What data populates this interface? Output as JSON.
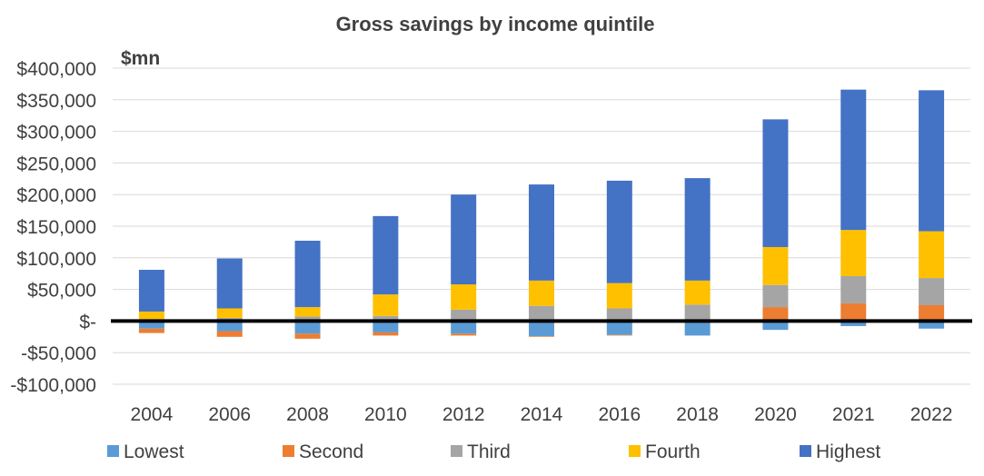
{
  "chart_data": {
    "type": "bar",
    "stacked": true,
    "title": "Gross savings by income quintile",
    "unit_label": "$mn",
    "xlabel": "",
    "ylabel": "",
    "categories": [
      "2004",
      "2006",
      "2008",
      "2010",
      "2012",
      "2014",
      "2016",
      "2018",
      "2020",
      "2021",
      "2022"
    ],
    "ylim": [
      -100000,
      400000
    ],
    "yticks": [
      400000,
      350000,
      300000,
      250000,
      200000,
      150000,
      100000,
      50000,
      0,
      -50000,
      -100000
    ],
    "ytick_labels": [
      "$400,000",
      "$350,000",
      "$300,000",
      "$250,000",
      "$200,000",
      "$150,000",
      "$100,000",
      "$50,000",
      "$-",
      "-$50,000",
      "-$100,000"
    ],
    "grid": true,
    "legend_position": "bottom",
    "series": [
      {
        "name": "Lowest",
        "color": "#5B9BD5",
        "values": [
          -12000,
          -16000,
          -20000,
          -18000,
          -20000,
          -24000,
          -22000,
          -23000,
          -14000,
          -8000,
          -12000
        ]
      },
      {
        "name": "Second",
        "color": "#ED7D31",
        "values": [
          -7000,
          -9000,
          -8000,
          -5000,
          -3000,
          -1000,
          -1000,
          0,
          22000,
          28000,
          25000
        ]
      },
      {
        "name": "Third",
        "color": "#A5A5A5",
        "values": [
          3000,
          5000,
          7000,
          8000,
          18000,
          24000,
          20000,
          26000,
          35000,
          43000,
          43000
        ]
      },
      {
        "name": "Fourth",
        "color": "#FFC000",
        "values": [
          12000,
          15000,
          15000,
          34000,
          40000,
          40000,
          40000,
          38000,
          60000,
          73000,
          74000
        ]
      },
      {
        "name": "Highest",
        "color": "#4472C4",
        "values": [
          66000,
          79000,
          105000,
          124000,
          142000,
          152000,
          162000,
          162000,
          202000,
          222000,
          223000
        ]
      }
    ]
  }
}
